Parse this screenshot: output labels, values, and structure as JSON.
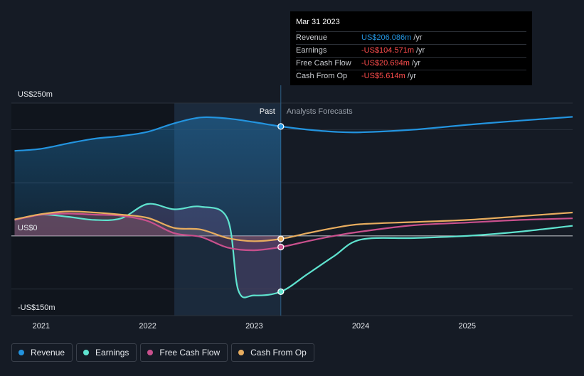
{
  "colors": {
    "revenue": "#2394df",
    "earnings": "#5fe3cf",
    "free_cash_flow": "#c9508d",
    "cash_from_op": "#e8ad5f",
    "background": "#151b25",
    "negative": "#ff4d4d"
  },
  "tooltip": {
    "date": "Mar 31 2023",
    "rows": [
      {
        "label": "Revenue",
        "value": "US$206.086m",
        "unit": "/yr",
        "color": "#2394df"
      },
      {
        "label": "Earnings",
        "value": "-US$104.571m",
        "unit": "/yr",
        "color": "#ff4d4d"
      },
      {
        "label": "Free Cash Flow",
        "value": "-US$20.694m",
        "unit": "/yr",
        "color": "#ff4d4d"
      },
      {
        "label": "Cash From Op",
        "value": "-US$5.614m",
        "unit": "/yr",
        "color": "#ff4d4d"
      }
    ]
  },
  "labels": {
    "past": "Past",
    "forecast": "Analysts Forecasts"
  },
  "legend": [
    {
      "name": "Revenue",
      "color": "#2394df"
    },
    {
      "name": "Earnings",
      "color": "#5fe3cf"
    },
    {
      "name": "Free Cash Flow",
      "color": "#c9508d"
    },
    {
      "name": "Cash From Op",
      "color": "#e8ad5f"
    }
  ],
  "chart_data": {
    "type": "line",
    "y_ticks": [
      {
        "value": 250,
        "label": "US$250m"
      },
      {
        "value": 0,
        "label": "US$0"
      },
      {
        "value": -150,
        "label": "-US$150m"
      }
    ],
    "ylim": [
      -150,
      250
    ],
    "xlim": [
      2020.72,
      2025.99
    ],
    "x_ticks": [
      {
        "value": 2021,
        "label": "2021"
      },
      {
        "value": 2022,
        "label": "2022"
      },
      {
        "value": 2023,
        "label": "2023"
      },
      {
        "value": 2024,
        "label": "2024"
      },
      {
        "value": 2025,
        "label": "2025"
      }
    ],
    "highlight_range": [
      2022.25,
      2023.25
    ],
    "current_x": 2023.25,
    "grid": true,
    "series": [
      {
        "name": "Revenue",
        "key": "revenue",
        "x": [
          2020.75,
          2021.0,
          2021.25,
          2021.5,
          2021.75,
          2022.0,
          2022.25,
          2022.5,
          2022.75,
          2023.0,
          2023.25,
          2023.5,
          2023.75,
          2024.0,
          2024.5,
          2025.0,
          2025.5,
          2025.99
        ],
        "y": [
          160,
          164,
          174,
          183,
          188,
          196,
          212,
          223,
          221,
          214,
          206,
          200,
          196,
          195,
          200,
          209,
          217,
          224
        ]
      },
      {
        "name": "Earnings",
        "key": "earnings",
        "x": [
          2020.75,
          2021.0,
          2021.25,
          2021.5,
          2021.75,
          2022.0,
          2022.25,
          2022.5,
          2022.75,
          2022.85,
          2023.0,
          2023.25,
          2023.5,
          2023.75,
          2024.0,
          2024.5,
          2025.0,
          2025.5,
          2025.99
        ],
        "y": [
          30,
          40,
          36,
          30,
          33,
          60,
          50,
          55,
          32,
          -102,
          -112,
          -105,
          -72,
          -38,
          -7,
          -4,
          0,
          8,
          19
        ]
      },
      {
        "name": "Free Cash Flow",
        "key": "free_cash_flow",
        "x": [
          2020.75,
          2021.0,
          2021.25,
          2021.5,
          2021.75,
          2022.0,
          2022.25,
          2022.5,
          2022.75,
          2023.0,
          2023.25,
          2023.5,
          2023.75,
          2024.0,
          2024.5,
          2025.0,
          2025.5,
          2025.99
        ],
        "y": [
          30,
          40,
          42,
          40,
          38,
          28,
          5,
          -2,
          -22,
          -27,
          -21,
          -10,
          0,
          8,
          20,
          25,
          30,
          33
        ]
      },
      {
        "name": "Cash From Op",
        "key": "cash_from_op",
        "x": [
          2020.75,
          2021.0,
          2021.25,
          2021.5,
          2021.75,
          2022.0,
          2022.25,
          2022.5,
          2022.75,
          2023.0,
          2023.25,
          2023.5,
          2023.75,
          2024.0,
          2024.5,
          2025.0,
          2025.5,
          2025.99
        ],
        "y": [
          31,
          41,
          46,
          44,
          40,
          34,
          15,
          12,
          -4,
          -10,
          -5.6,
          5,
          15,
          22,
          26,
          30,
          37,
          44
        ]
      }
    ]
  }
}
